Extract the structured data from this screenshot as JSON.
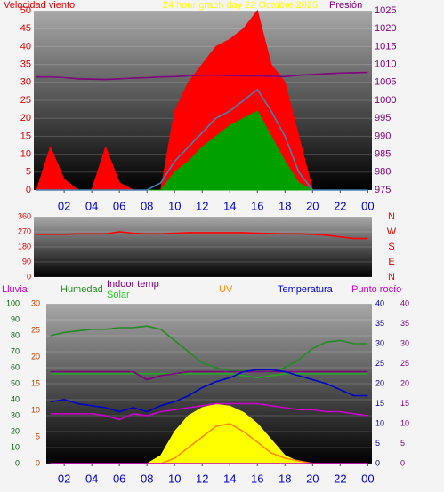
{
  "chart_data": [
    {
      "type": "line",
      "title": "24 hour graph day   22 Octubre 2025",
      "x": [
        0,
        1,
        2,
        3,
        4,
        5,
        6,
        7,
        8,
        9,
        10,
        11,
        12,
        13,
        14,
        15,
        16,
        17,
        18,
        19,
        20,
        21,
        22,
        23,
        24
      ],
      "xlim": [
        -0.2,
        24.3
      ],
      "xticks": [
        {
          "value": 2,
          "label": "02"
        },
        {
          "value": 4,
          "label": "04"
        },
        {
          "value": 6,
          "label": "06"
        },
        {
          "value": 8,
          "label": "08"
        },
        10,
        12,
        14,
        16,
        18,
        20,
        22,
        {
          "value": 24,
          "label": "00"
        }
      ],
      "axes": [
        {
          "label": "Velocidad viento",
          "color": "#e00000",
          "lim": [
            0,
            50
          ],
          "ticks": [
            0,
            5,
            10,
            15,
            20,
            25,
            30,
            35,
            40,
            45,
            50
          ]
        },
        {
          "label": "Presión",
          "color": "#800080",
          "lim": [
            975,
            1025
          ],
          "ticks": [
            975,
            980,
            985,
            990,
            995,
            1000,
            1005,
            1010,
            1015,
            1020,
            1025
          ]
        }
      ],
      "grid": true,
      "series": [
        {
          "color": "#ff0000",
          "fill": "#ff0000",
          "axis": 0,
          "values": [
            0,
            12,
            3,
            0,
            0,
            12,
            2,
            0,
            0,
            0,
            22,
            30,
            35,
            40,
            42,
            45,
            50,
            35,
            30,
            15,
            0,
            0,
            0,
            0,
            0
          ]
        },
        {
          "color": "#00a000",
          "fill": "#00a000",
          "axis": 0,
          "values": [
            0,
            0,
            0,
            0,
            0,
            0,
            0,
            0,
            0,
            0,
            5,
            8,
            12,
            15,
            18,
            20,
            22,
            15,
            8,
            2,
            0,
            0,
            0,
            0,
            0
          ]
        },
        {
          "color": "#4682b4",
          "axis": 0,
          "values": [
            0,
            0,
            0,
            0,
            0,
            0,
            0,
            0,
            0,
            2,
            8,
            12,
            16,
            20,
            22,
            25,
            28,
            22,
            15,
            5,
            0,
            0,
            0,
            0,
            0
          ]
        },
        {
          "color": "#800080",
          "axis": 1,
          "values": [
            1006.5,
            1006.5,
            1006.3,
            1006,
            1005.9,
            1005.8,
            1006,
            1006.2,
            1006.3,
            1006.5,
            1006.6,
            1006.8,
            1007,
            1007,
            1006.9,
            1006.8,
            1006.8,
            1006.7,
            1006.6,
            1007,
            1007.2,
            1007.4,
            1007.6,
            1007.7,
            1007.8
          ]
        }
      ]
    },
    {
      "type": "line",
      "x": [
        0,
        1,
        2,
        3,
        4,
        5,
        6,
        7,
        8,
        9,
        10,
        11,
        12,
        13,
        14,
        15,
        16,
        17,
        18,
        19,
        20,
        21,
        22,
        23,
        24
      ],
      "xlim": [
        -0.2,
        24.3
      ],
      "axes": [
        {
          "color": "#e00000",
          "lim": [
            0,
            360
          ],
          "ticks": [
            0,
            90,
            180,
            270,
            360
          ]
        }
      ],
      "direction_labels": [
        "N",
        "W",
        "S",
        "E",
        "N"
      ],
      "grid": true,
      "series": [
        {
          "color": "#ff0000",
          "axis": 0,
          "values": [
            255,
            255,
            255,
            258,
            258,
            258,
            270,
            262,
            258,
            258,
            262,
            265,
            265,
            265,
            265,
            265,
            262,
            260,
            258,
            258,
            255,
            250,
            240,
            230,
            230
          ]
        }
      ]
    },
    {
      "type": "line",
      "x": [
        1,
        2,
        3,
        4,
        5,
        6,
        7,
        8,
        9,
        10,
        11,
        12,
        13,
        14,
        15,
        16,
        17,
        18,
        19,
        20,
        21,
        22,
        23,
        24
      ],
      "xlim": [
        0.7,
        24.3
      ],
      "xticks": [
        {
          "value": 2,
          "label": "02"
        },
        {
          "value": 4,
          "label": "04"
        },
        {
          "value": 6,
          "label": "06"
        },
        {
          "value": 8,
          "label": "08"
        },
        10,
        12,
        14,
        16,
        18,
        20,
        22,
        {
          "value": 24,
          "label": "00"
        }
      ],
      "axes": [
        {
          "color": "#006600",
          "lim": [
            0,
            100
          ],
          "ticks": [
            0,
            10,
            20,
            30,
            40,
            50,
            60,
            70,
            80,
            90,
            100
          ]
        },
        {
          "color": "#c04000",
          "lim": [
            0,
            30
          ],
          "ticks": [
            0,
            5,
            10,
            15,
            20,
            25,
            30
          ]
        },
        {
          "color": "#0000aa",
          "lim": [
            0,
            40
          ],
          "ticks": [
            0,
            5,
            10,
            15,
            20,
            25,
            30,
            35,
            40
          ]
        },
        {
          "color": "#800080",
          "lim": [
            0,
            40
          ],
          "ticks": [
            0,
            5,
            10,
            15,
            20,
            25,
            30,
            35,
            40
          ]
        }
      ],
      "grid": true,
      "series": [
        {
          "name": "Solar",
          "color": "#22cc22",
          "fill": "#ffff00",
          "axis": 0,
          "values": [
            0,
            0,
            0,
            0,
            0,
            0,
            0,
            0,
            5,
            20,
            30,
            35,
            37,
            36,
            32,
            25,
            15,
            5,
            1,
            0,
            0,
            0,
            0,
            0
          ]
        },
        {
          "name": "UV",
          "color": "#ff8c00",
          "axis": 1,
          "values": [
            0,
            0,
            0,
            0,
            0,
            0,
            0,
            0,
            0,
            1,
            3,
            5,
            7,
            7.5,
            6,
            4,
            2,
            1,
            0.5,
            0,
            0,
            0,
            0,
            0
          ]
        },
        {
          "name": "Lluvia",
          "color": "#cc00cc",
          "axis": 1,
          "values": [
            0,
            0,
            0,
            0,
            0,
            0,
            0,
            0,
            0,
            0,
            0,
            0,
            0,
            0,
            0,
            0,
            0,
            0,
            0,
            0,
            0,
            0,
            0,
            0
          ]
        },
        {
          "name": "Humedad",
          "color": "#228b22",
          "axis": 0,
          "values": [
            80,
            82,
            83,
            84,
            84,
            85,
            85,
            86,
            84,
            77,
            70,
            63,
            60,
            58,
            58,
            58,
            57,
            60,
            65,
            72,
            76,
            77,
            75,
            75
          ]
        },
        {
          "color": "#22aa22",
          "axis": 2,
          "values": [
            22.5,
            22.5,
            22.5,
            22.5,
            22.5,
            22.5,
            22.5,
            22.5,
            22.5,
            22.5,
            22.5,
            22.5,
            22.5,
            22.5,
            22,
            21.5,
            22,
            22.5,
            22.5,
            22.5,
            22.5,
            22.5,
            22.5,
            22.5
          ]
        },
        {
          "name": "Indoor temp",
          "color": "#800080",
          "axis": 2,
          "values": [
            23,
            23,
            23,
            23,
            23,
            23,
            23,
            21,
            22,
            22.5,
            23,
            23,
            23,
            23,
            23,
            23,
            23,
            23,
            23,
            23,
            23,
            23,
            23,
            23
          ]
        },
        {
          "name": "Temperatura",
          "color": "#0000cc",
          "axis": 2,
          "values": [
            15.5,
            16,
            15,
            14.5,
            14,
            13,
            14,
            13,
            14.5,
            15.5,
            17,
            19,
            20.5,
            21.5,
            23,
            23.5,
            23.5,
            23,
            22,
            21,
            20,
            18.5,
            17,
            17
          ]
        },
        {
          "name": "Punto rocío",
          "color": "#cc00cc",
          "axis": 2,
          "values": [
            12.5,
            12.5,
            12.5,
            12.5,
            12,
            11,
            12.5,
            12,
            13,
            13.5,
            14,
            14.5,
            15,
            15,
            15,
            15,
            14.5,
            14,
            13.5,
            13.5,
            13,
            13,
            12.5,
            12
          ]
        }
      ]
    }
  ]
}
